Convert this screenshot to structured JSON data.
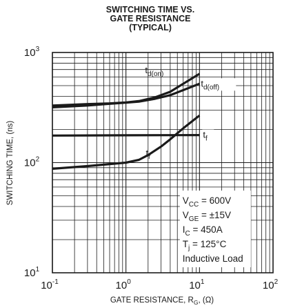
{
  "chart_data": {
    "type": "line",
    "title_lines": [
      "SWITCHING TIME VS.",
      "GATE RESISTANCE",
      "(TYPICAL)"
    ],
    "xlabel": "GATE RESISTANCE, R",
    "xlabel_sub": "G",
    "xlabel_tail": ", (Ω)",
    "ylabel": "SWITCHING TIME, (ns)",
    "x_scale": "log",
    "y_scale": "log",
    "xlim": [
      0.1,
      100
    ],
    "ylim": [
      10,
      1000
    ],
    "grid": true,
    "x_ticks": [
      {
        "value": 0.1,
        "base": "10",
        "exp": "-1"
      },
      {
        "value": 1,
        "base": "10",
        "exp": "0"
      },
      {
        "value": 10,
        "base": "10",
        "exp": "1"
      },
      {
        "value": 100,
        "base": "10",
        "exp": "2"
      }
    ],
    "y_ticks": [
      {
        "value": 10,
        "base": "10",
        "exp": "1"
      },
      {
        "value": 100,
        "base": "10",
        "exp": "2"
      },
      {
        "value": 1000,
        "base": "10",
        "exp": "3"
      }
    ],
    "series": [
      {
        "name": "td(on)",
        "main": "t",
        "sub": "d(on)",
        "points": [
          [
            0.1,
            330
          ],
          [
            0.3,
            340
          ],
          [
            0.6,
            345
          ],
          [
            1.0,
            352
          ],
          [
            1.5,
            362
          ],
          [
            2.5,
            392
          ],
          [
            4.0,
            440
          ],
          [
            6.0,
            520
          ],
          [
            10.0,
            640
          ]
        ]
      },
      {
        "name": "td(off)",
        "main": "t",
        "sub": "d(off)",
        "points": [
          [
            0.1,
            318
          ],
          [
            0.3,
            330
          ],
          [
            0.6,
            342
          ],
          [
            1.0,
            350
          ],
          [
            1.5,
            358
          ],
          [
            2.5,
            380
          ],
          [
            4.0,
            410
          ],
          [
            6.0,
            455
          ],
          [
            10.0,
            520
          ]
        ]
      },
      {
        "name": "tf",
        "main": "t",
        "sub": "f",
        "points": [
          [
            0.1,
            176
          ],
          [
            1.0,
            177
          ],
          [
            10.0,
            178
          ]
        ]
      },
      {
        "name": "tr",
        "main": "t",
        "sub": "r",
        "points": [
          [
            0.1,
            88
          ],
          [
            0.3,
            93
          ],
          [
            0.6,
            97
          ],
          [
            1.0,
            100
          ],
          [
            1.5,
            106
          ],
          [
            2.0,
            117
          ],
          [
            3.0,
            140
          ],
          [
            4.0,
            163
          ],
          [
            6.0,
            205
          ],
          [
            10.0,
            268
          ]
        ]
      }
    ],
    "conditions": [
      {
        "main": "V",
        "sub": "CC",
        "tail": " = 600V"
      },
      {
        "main": "V",
        "sub": "GE",
        "tail": " = ±15V"
      },
      {
        "main": "I",
        "sub": "C",
        "tail": " = 450A"
      },
      {
        "main": "T",
        "sub": "j",
        "tail": " = 125°C"
      },
      {
        "main": "Inductive Load",
        "sub": "",
        "tail": ""
      }
    ]
  }
}
